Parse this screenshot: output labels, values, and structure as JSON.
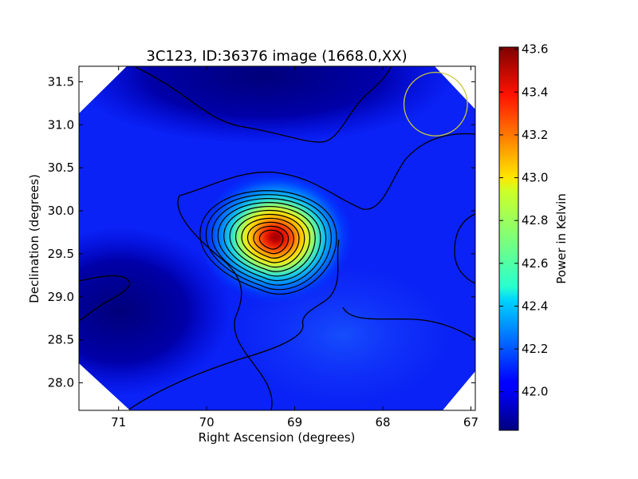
{
  "chart_data": {
    "type": "heatmap",
    "title": "3C123, ID:36376 image (1668.0,XX)",
    "xlabel": "Right Ascension (degrees)",
    "ylabel": "Declination (degrees)",
    "xlim": [
      71.45,
      66.95
    ],
    "ylim": [
      27.68,
      31.68
    ],
    "x_reversed": true,
    "x_ticks": [
      71,
      70,
      69,
      68,
      67
    ],
    "y_ticks": [
      28.0,
      28.5,
      29.0,
      29.5,
      30.0,
      30.5,
      31.0,
      31.5
    ],
    "colorbar": {
      "label": "Power in Kelvin",
      "colormap": "jet",
      "range": [
        41.82,
        43.61
      ],
      "ticks": [
        42.0,
        42.2,
        42.4,
        42.6,
        42.8,
        43.0,
        43.2,
        43.4,
        43.6
      ]
    },
    "source": {
      "ra": 69.26,
      "dec": 29.67,
      "peak": 43.61
    },
    "beam_circle": {
      "ra": 67.4,
      "dec": 31.24,
      "radius_deg": 0.36,
      "color": "#c8c83a"
    },
    "contour_lines": "black",
    "masked_corners": true
  },
  "x_tick_labels": [
    "71",
    "70",
    "69",
    "68",
    "67"
  ],
  "y_tick_labels": [
    "28.0",
    "28.5",
    "29.0",
    "29.5",
    "30.0",
    "30.5",
    "31.0",
    "31.5"
  ],
  "cbar_tick_labels": [
    "42.0",
    "42.2",
    "42.4",
    "42.6",
    "42.8",
    "43.0",
    "43.2",
    "43.4",
    "43.6"
  ]
}
